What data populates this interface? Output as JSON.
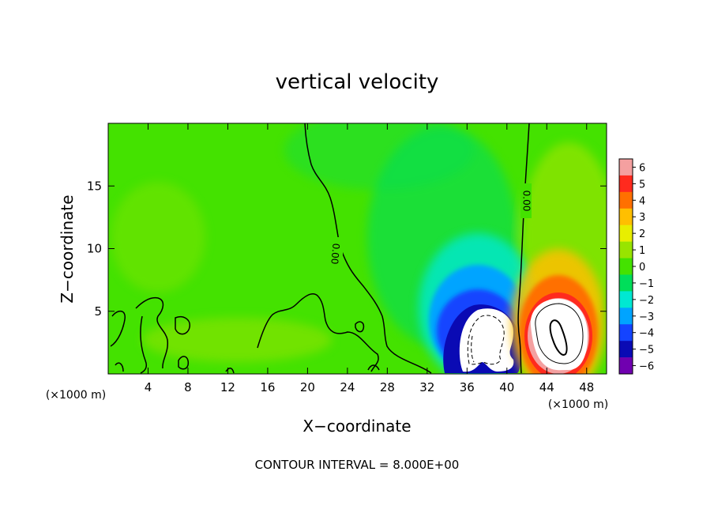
{
  "chart_data": {
    "type": "heatmap",
    "title": "vertical velocity",
    "xlabel": "X−coordinate",
    "ylabel": "Z−coordinate",
    "x_unit_left": "(×1000 m)",
    "x_unit_right": "(×1000 m)",
    "xlim": [
      0,
      50
    ],
    "ylim": [
      0,
      20
    ],
    "x_ticks": [
      4,
      8,
      12,
      16,
      20,
      24,
      28,
      32,
      36,
      40,
      44,
      48
    ],
    "x_tick_labels": [
      "4",
      "8",
      "12",
      "16",
      "20",
      "24",
      "28",
      "32",
      "36",
      "40",
      "44",
      "48"
    ],
    "y_ticks": [
      5,
      10,
      15
    ],
    "y_tick_labels": [
      "5",
      "10",
      "15"
    ],
    "colorbar": {
      "levels": [
        6,
        5,
        4,
        3,
        2,
        1,
        0,
        -1,
        -2,
        -3,
        -4,
        -5,
        -6
      ],
      "labels": [
        "6",
        "5",
        "4",
        "3",
        "2",
        "1",
        "0",
        "−1",
        "−2",
        "−3",
        "−4",
        "−5",
        "−6"
      ],
      "colors": [
        "#f4a0a0",
        "#ff2a1e",
        "#ff7000",
        "#ffbf00",
        "#e8ee00",
        "#98e400",
        "#44e200",
        "#00de5a",
        "#00e8d2",
        "#00a4ff",
        "#1444ff",
        "#0a0ab4",
        "#7000b0"
      ]
    },
    "contour_labels": [
      "0.00",
      "0.00"
    ],
    "features": [
      {
        "kind": "updraft",
        "x": 45,
        "z": 2.5,
        "peak": 6
      },
      {
        "kind": "downdraft",
        "x": 38,
        "z": 2.5,
        "peak": -6
      }
    ],
    "grid": false
  },
  "footer": {
    "contour_interval": "CONTOUR INTERVAL = 8.000E+00"
  },
  "colors": {
    "background_field": "#44e200",
    "contour_line": "#000000",
    "outside_range": "#ffffff"
  }
}
